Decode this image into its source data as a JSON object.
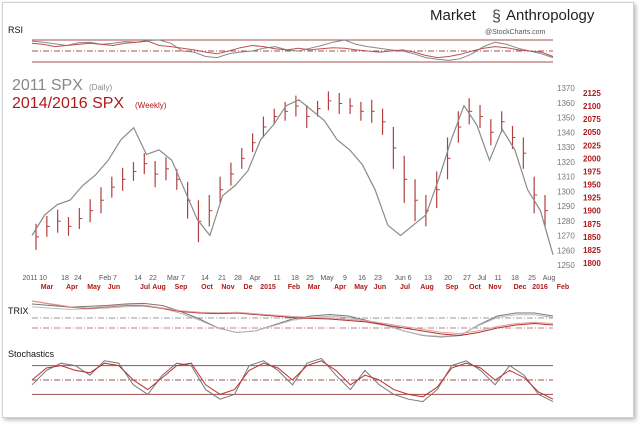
{
  "brand": {
    "left": "Market",
    "right": "Anthropology",
    "credit": "@StockCharts.com"
  },
  "colors": {
    "grey": "#8a8a8a",
    "red": "#b01818",
    "dark": "#5a1010",
    "band": "#a05050"
  },
  "chart_data": [
    {
      "panel": "RSI",
      "type": "line",
      "title": "RSI",
      "ylim": [
        0,
        100
      ],
      "levels": [
        70,
        50,
        30
      ],
      "series": [
        {
          "name": "2011 SPX RSI",
          "values": [
            68,
            66,
            63,
            60,
            65,
            66,
            62,
            64,
            67,
            66,
            69,
            70,
            64,
            50,
            48,
            40,
            38,
            45,
            48,
            50,
            55,
            58,
            52,
            50,
            55,
            60,
            66,
            70,
            62,
            58,
            55,
            52,
            50,
            45,
            38,
            35,
            33,
            36,
            45,
            58,
            66,
            62,
            55,
            50,
            45,
            38
          ]
        },
        {
          "name": "2014/2016 SPX RSI",
          "values": [
            64,
            62,
            58,
            60,
            62,
            64,
            62,
            60,
            64,
            66,
            68,
            60,
            58,
            55,
            52,
            48,
            45,
            50,
            56,
            60,
            58,
            54,
            52,
            55,
            52,
            54,
            56,
            55,
            52,
            50,
            48,
            50,
            52,
            48,
            42,
            38,
            40,
            44,
            50,
            55,
            58,
            56,
            52,
            50,
            48,
            40
          ]
        }
      ]
    },
    {
      "panel": "Price",
      "type": "line",
      "legend": [
        "2011 SPX",
        "(Daily)",
        "2014/2016 SPX",
        "(Weekly)"
      ],
      "y_left_label": "2011 SPX",
      "ylim": [
        1250,
        1370
      ],
      "y_ticks": [
        1370,
        1360,
        1350,
        1340,
        1330,
        1320,
        1310,
        1300,
        1290,
        1280,
        1270,
        1260,
        1250
      ],
      "ylim_red": [
        1800,
        2125
      ],
      "y_ticks_red": [
        2125,
        2100,
        2075,
        2050,
        2025,
        2000,
        1975,
        1950,
        1925,
        1900,
        1875,
        1850,
        1825,
        1800
      ],
      "x_ticks_2011": [
        "2011",
        "10",
        "18",
        "24",
        "Feb 7",
        "14",
        "22",
        "Mar 7",
        "14",
        "21",
        "28",
        "Apr",
        "11",
        "18",
        "25",
        "May",
        "9",
        "16",
        "23",
        "Jun 6",
        "13",
        "20",
        "27",
        "Jul",
        "11",
        "18",
        "25",
        "Aug"
      ],
      "x_ticks_2014": [
        "Mar",
        "Apr",
        "May",
        "Jun",
        "Jul",
        "Aug",
        "Sep",
        "Oct",
        "Nov",
        "De",
        "2015",
        "Feb",
        "Mar",
        "Apr",
        "May",
        "Jun",
        "Jul",
        "Aug",
        "Sep",
        "Oct",
        "Nov",
        "Dec",
        "2016",
        "Feb"
      ],
      "series": [
        {
          "name": "2011 SPX (Daily)",
          "values": [
            1270,
            1284,
            1291,
            1294,
            1304,
            1311,
            1321,
            1335,
            1343,
            1325,
            1328,
            1321,
            1301,
            1281,
            1270,
            1297,
            1304,
            1314,
            1335,
            1345,
            1358,
            1362,
            1355,
            1348,
            1335,
            1328,
            1318,
            1301,
            1277,
            1270,
            1277,
            1284,
            1308,
            1335,
            1358,
            1345,
            1321,
            1342,
            1328,
            1301,
            1287,
            1257
          ]
        },
        {
          "name": "2014/2016 SPX (Weekly)",
          "close": [
            1850,
            1870,
            1880,
            1870,
            1885,
            1900,
            1920,
            1945,
            1960,
            1975,
            1990,
            1970,
            1980,
            1960,
            1920,
            1880,
            1900,
            1940,
            1970,
            2000,
            2030,
            2060,
            2080,
            2090,
            2100,
            2080,
            2095,
            2110,
            2105,
            2100,
            2090,
            2090,
            2070,
            2020,
            1960,
            1920,
            1900,
            1940,
            2000,
            2060,
            2090,
            2080,
            2050,
            2070,
            2040,
            2010,
            1930,
            1900
          ],
          "half_range": [
            25,
            20,
            22,
            18,
            20,
            22,
            25,
            20,
            22,
            18,
            20,
            25,
            22,
            20,
            35,
            40,
            30,
            25,
            22,
            20,
            18,
            20,
            15,
            18,
            20,
            22,
            15,
            18,
            20,
            15,
            18,
            22,
            25,
            40,
            45,
            40,
            30,
            35,
            40,
            30,
            25,
            22,
            25,
            20,
            22,
            30,
            35,
            30
          ]
        }
      ]
    },
    {
      "panel": "TRIX",
      "type": "line",
      "title": "TRIX",
      "series": [
        {
          "name": "2011 TRIX",
          "values": [
            0.6,
            0.55,
            0.5,
            0.52,
            0.55,
            0.6,
            0.62,
            0.55,
            0.35,
            0.1,
            -0.2,
            -0.35,
            -0.3,
            -0.1,
            0.1,
            0.2,
            0.25,
            0.2,
            0.05,
            -0.1,
            -0.3,
            -0.45,
            -0.5,
            -0.45,
            -0.1,
            0.2,
            0.3,
            0.3,
            0.2
          ]
        },
        {
          "name": "2014/2016 TRIX",
          "values": [
            0.7,
            0.6,
            0.5,
            0.45,
            0.5,
            0.55,
            0.55,
            0.45,
            0.35,
            0.3,
            0.28,
            0.3,
            0.25,
            0.2,
            0.15,
            0.12,
            0.1,
            0.05,
            0,
            -0.1,
            -0.2,
            -0.3,
            -0.4,
            -0.45,
            -0.35,
            -0.2,
            -0.1,
            -0.05,
            -0.1
          ]
        }
      ]
    },
    {
      "panel": "Stochastics",
      "type": "line",
      "title": "Stochastics",
      "ylim": [
        0,
        100
      ],
      "levels": [
        80,
        50,
        20
      ],
      "series": [
        {
          "name": "2011 Stochastics",
          "values": [
            40,
            70,
            85,
            80,
            60,
            90,
            85,
            40,
            20,
            60,
            85,
            80,
            30,
            10,
            20,
            80,
            90,
            70,
            40,
            85,
            95,
            60,
            30,
            70,
            40,
            20,
            10,
            5,
            30,
            80,
            90,
            70,
            40,
            80,
            60,
            20,
            5
          ]
        },
        {
          "name": "2014/2016 Stochastics",
          "values": [
            50,
            75,
            80,
            70,
            65,
            85,
            80,
            50,
            30,
            55,
            80,
            85,
            40,
            20,
            30,
            70,
            85,
            75,
            50,
            80,
            90,
            70,
            40,
            60,
            50,
            30,
            20,
            15,
            35,
            75,
            85,
            75,
            50,
            70,
            55,
            25,
            10
          ]
        }
      ]
    }
  ]
}
